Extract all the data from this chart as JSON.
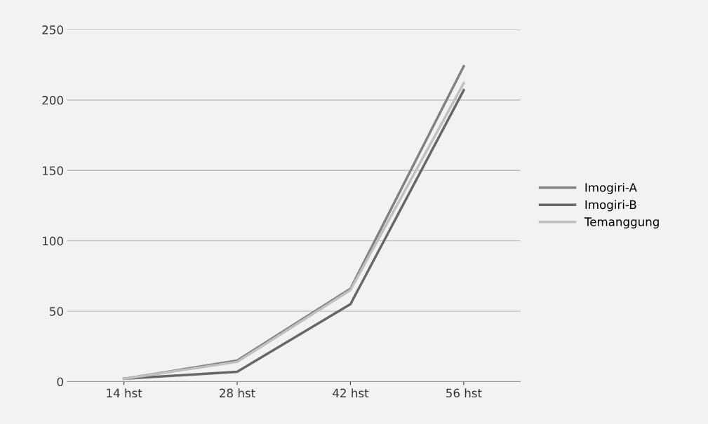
{
  "chart_data": {
    "type": "line",
    "categories": [
      "14 hst",
      "28 hst",
      "42 hst",
      "56 hst"
    ],
    "series": [
      {
        "name": "Imogiri-A",
        "color": "#808080",
        "values": [
          2,
          15,
          66,
          224
        ]
      },
      {
        "name": "Imogiri-B",
        "color": "#666666",
        "values": [
          2,
          7,
          55,
          207
        ]
      },
      {
        "name": "Temanggung",
        "color": "#c0c0c0",
        "values": [
          2,
          14,
          65,
          212
        ]
      }
    ],
    "ylim": [
      0,
      250
    ],
    "yticks": [
      0,
      50,
      100,
      150,
      200,
      250
    ],
    "grid": "y",
    "legend": "right",
    "marker": "none",
    "line_style": "solid"
  }
}
